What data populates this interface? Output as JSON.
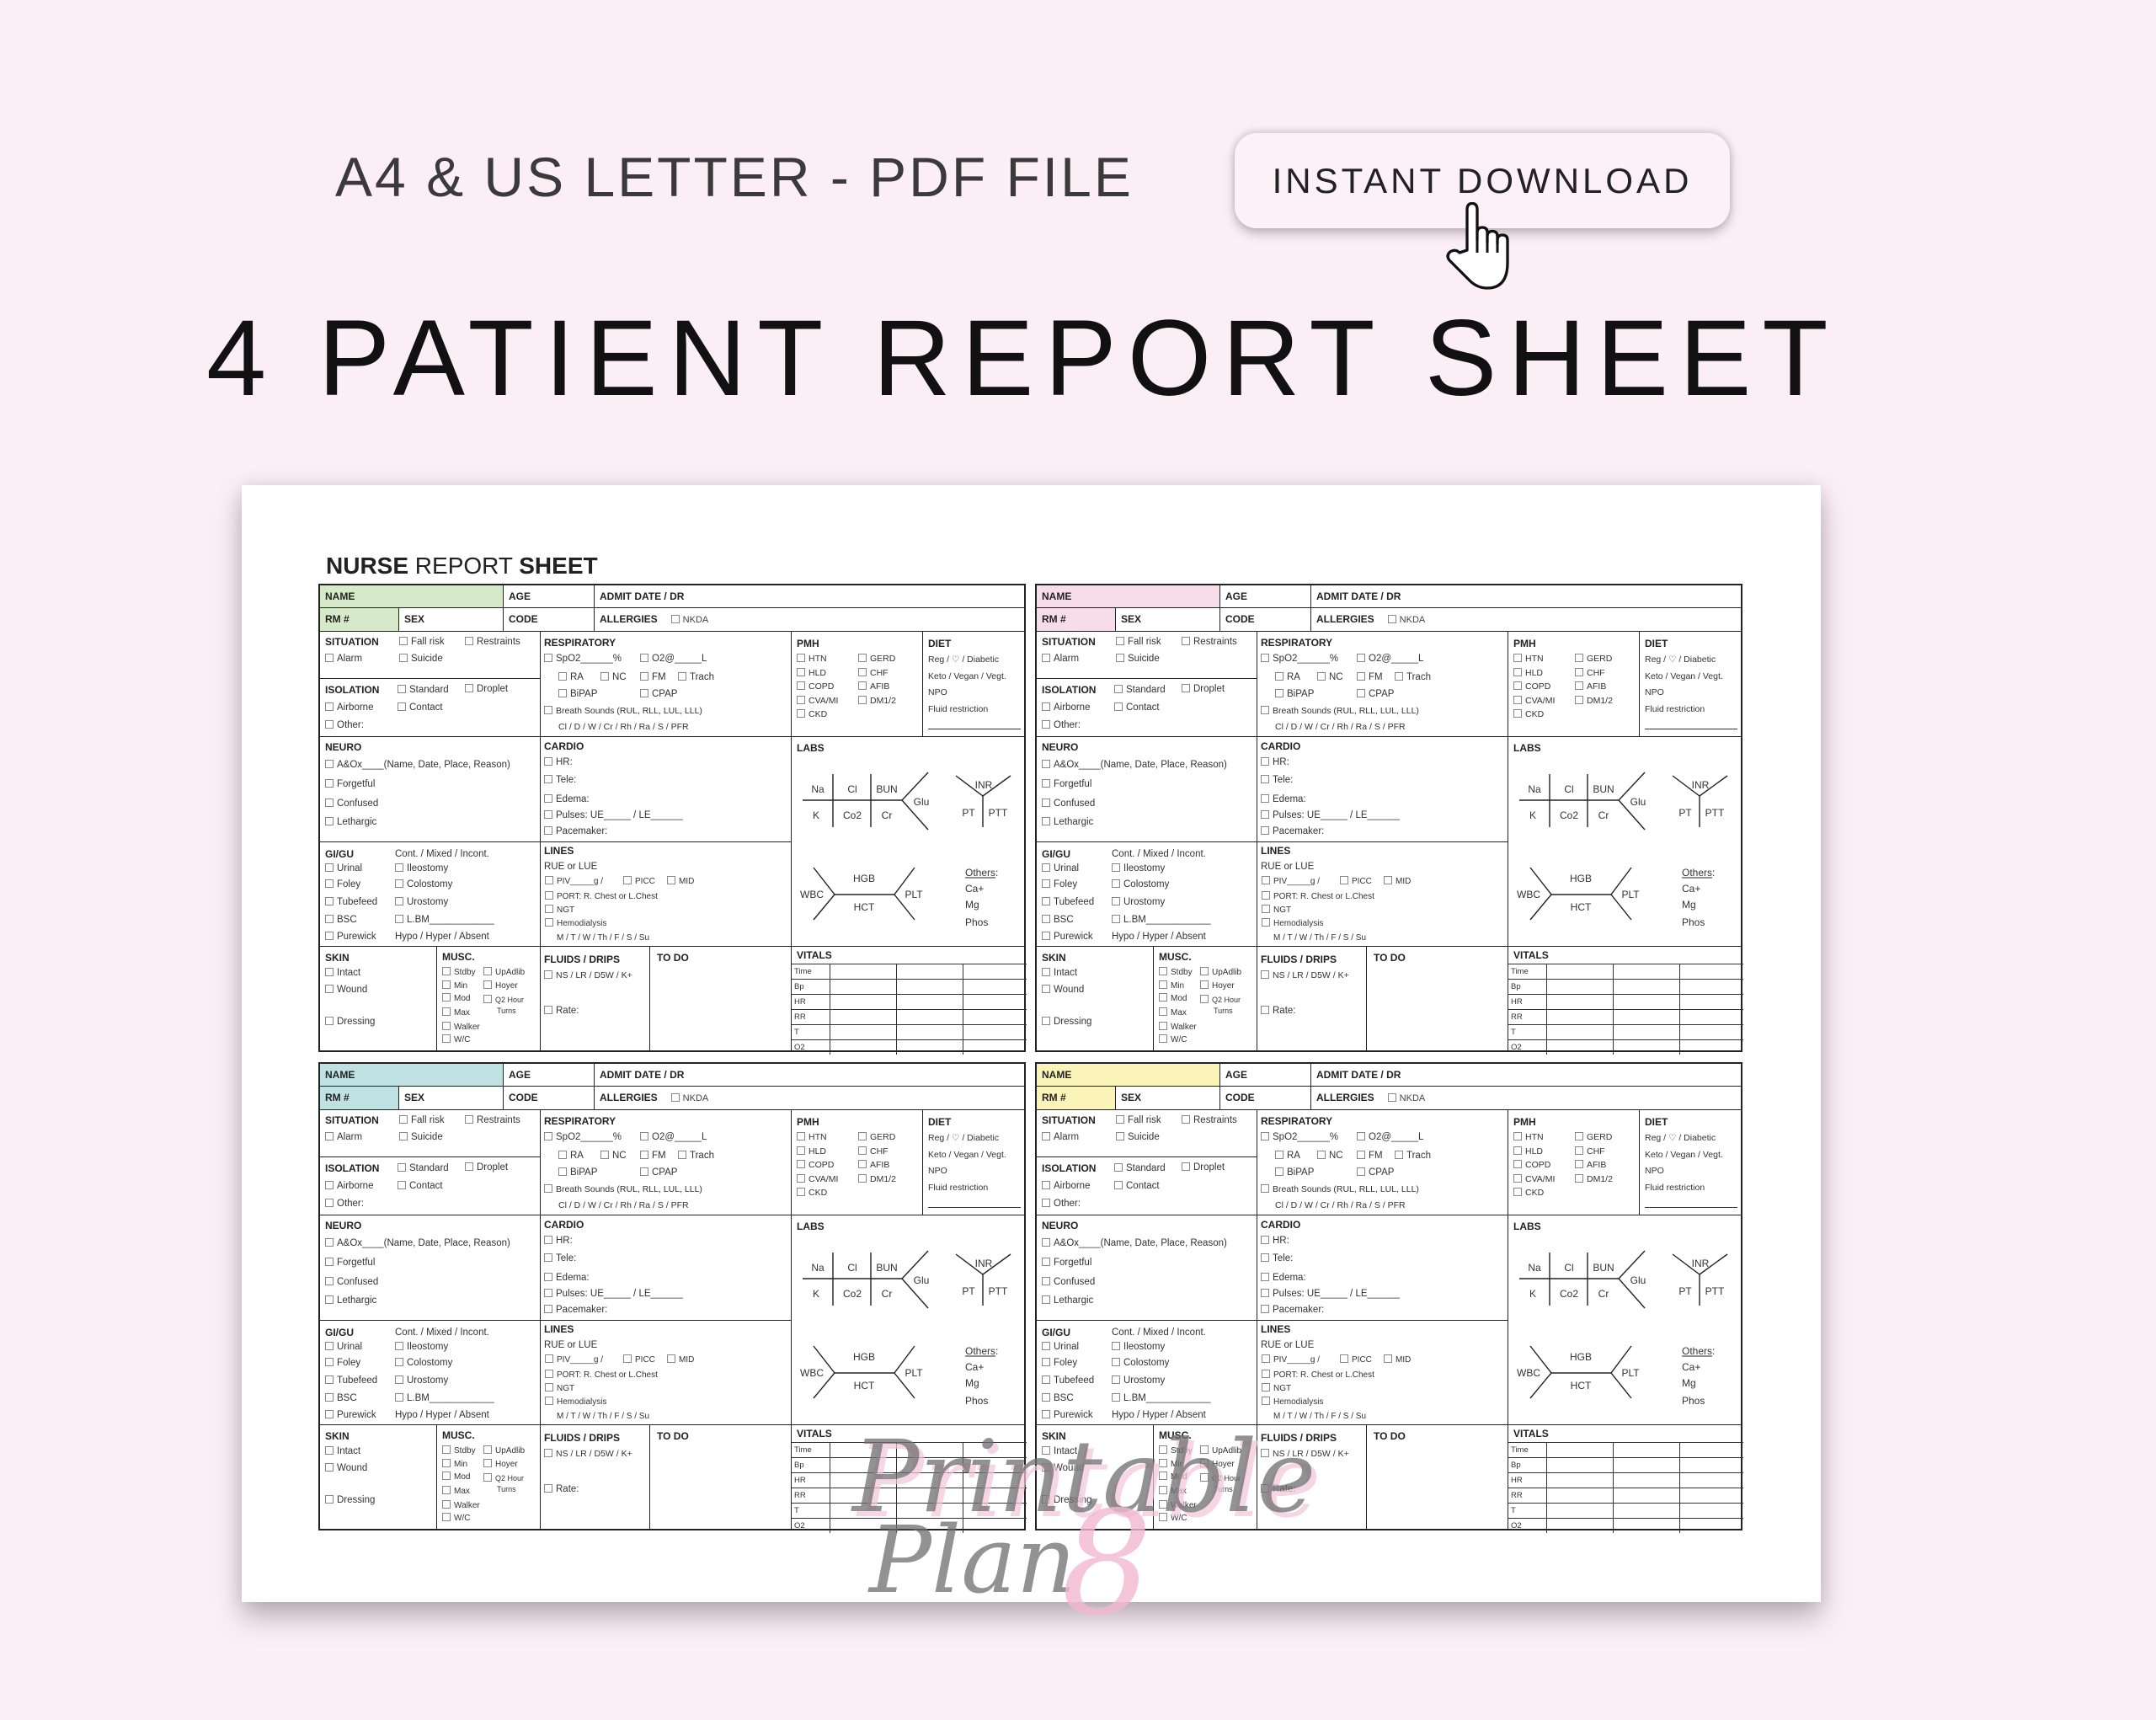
{
  "banner": {
    "format_text": "A4 & US LETTER - PDF FILE",
    "download_button": "INSTANT DOWNLOAD",
    "title": "4 PATIENT REPORT SHEET",
    "hand_icon": "pointing-hand-cursor-icon"
  },
  "sheet": {
    "title_bold_1": "NURSE",
    "title_regular": " REPORT ",
    "title_bold_2": "SHEET"
  },
  "blocks": [
    {
      "header_color": "#d6e9c8"
    },
    {
      "header_color": "#f7dcea"
    },
    {
      "header_color": "#bfe1e4"
    },
    {
      "header_color": "#fbf4b8"
    }
  ],
  "form": {
    "header": {
      "name": "NAME",
      "age": "AGE",
      "admit": "ADMIT DATE / DR",
      "rm": "RM #",
      "sex": "SEX",
      "code": "CODE",
      "allergies": "ALLERGIES",
      "nkda": "NKDA"
    },
    "situation": {
      "title": "SITUATION",
      "fall_risk": "Fall risk",
      "restraints": "Restraints",
      "alarm": "Alarm",
      "suicide": "Suicide"
    },
    "isolation": {
      "title": "ISOLATION",
      "standard": "Standard",
      "droplet": "Droplet",
      "airborne": "Airborne",
      "contact": "Contact",
      "other": "Other:"
    },
    "neuro": {
      "title": "NEURO",
      "aox": "A&Ox____(Name, Date, Place, Reason)",
      "forgetful": "Forgetful",
      "confused": "Confused",
      "lethargic": "Lethargic"
    },
    "gigu": {
      "title": "GI/GU",
      "continence": "Cont. / Mixed /  Incont.",
      "urinal": "Urinal",
      "foley": "Foley",
      "tubefeed": "Tubefeed",
      "bsc": "BSC",
      "purewick": "Purewick",
      "ileostomy": "Ileostomy",
      "colostomy": "Colostomy",
      "urostomy": "Urostomy",
      "lbm": "L.BM____________",
      "bowel": "Hypo / Hyper / Absent"
    },
    "skin": {
      "title": "SKIN",
      "intact": "Intact",
      "wound": "Wound",
      "dressing": "Dressing"
    },
    "musc": {
      "title": "MUSC.",
      "stdby": "Stdby",
      "min": "Min",
      "mod": "Mod",
      "max": "Max",
      "walker": "Walker",
      "wc": "W/C",
      "upadlib": "UpAdlib",
      "hoyer": "Hoyer",
      "q2": "Q2 Hour",
      "turns": "Turns"
    },
    "respiratory": {
      "title": "RESPIRATORY",
      "spo2": "SpO2______%",
      "o2": "O2@_____L",
      "ra": "RA",
      "nc": "NC",
      "fm": "FM",
      "trach": "Trach",
      "bipap": "BiPAP",
      "cpap": "CPAP",
      "breath": "Breath Sounds (RUL, RLL, LUL, LLL)",
      "sounds": "Cl / D / W / Cr / Rh / Ra / S / PFR"
    },
    "cardio": {
      "title": "CARDIO",
      "hr": "HR:",
      "tele": "Tele:",
      "edema": "Edema:",
      "pulses": "Pulses: UE_____ / LE______",
      "pacemaker": "Pacemaker:"
    },
    "lines": {
      "title": "LINES",
      "side": "RUE or LUE",
      "piv": "PIV_____g /",
      "picc": "PICC",
      "mid": "MID",
      "port": "PORT: R. Chest or L.Chest",
      "ngt": "NGT",
      "hemo": "Hemodialysis",
      "days": "M / T / W / Th / F / S / Su"
    },
    "fluids": {
      "title": "FLUIDS / DRIPS",
      "types": "NS / LR / D5W / K+",
      "rate": "Rate:"
    },
    "todo": {
      "title": "TO DO"
    },
    "pmh": {
      "title": "PMH",
      "htn": "HTN",
      "hld": "HLD",
      "copd": "COPD",
      "cva": "CVA/MI",
      "ckd": "CKD",
      "gerd": "GERD",
      "chf": "CHF",
      "afib": "AFIB",
      "dm": "DM1/2"
    },
    "diet": {
      "title": "DIET",
      "reg": "Reg / ♡ / Diabetic",
      "keto": "Keto / Vegan / Vegt.",
      "npo": "NPO",
      "fluid": "Fluid restriction"
    },
    "labs": {
      "title": "LABS",
      "na": "Na",
      "cl": "Cl",
      "bun": "BUN",
      "k": "K",
      "co2": "Co2",
      "cr": "Cr",
      "glu": "Glu",
      "inr": "INR",
      "pt": "PT",
      "ptt": "PTT",
      "wbc": "WBC",
      "hgb": "HGB",
      "hct": "HCT",
      "plt": "PLT",
      "others": "Others:",
      "ca": "Ca+",
      "mg": "Mg",
      "phos": "Phos"
    },
    "vitals": {
      "title": "VITALS",
      "rows": [
        "Time",
        "Bp",
        "HR",
        "RR",
        "T",
        "O2"
      ]
    }
  },
  "watermark": {
    "line1": "Printable",
    "line2": "Plan",
    "mark": "8"
  }
}
